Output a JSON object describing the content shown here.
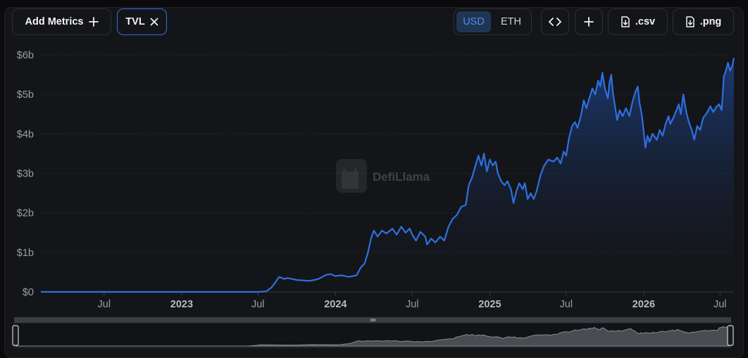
{
  "toolbar": {
    "add_metrics_label": "Add Metrics",
    "tvl_chip_label": "TVL",
    "currency_options": [
      "USD",
      "ETH"
    ],
    "currency_selected": "USD",
    "csv_label": ".csv",
    "png_label": ".png"
  },
  "watermark": "DefiLlama",
  "colors": {
    "line": "#2f6fe0",
    "fill_top": "#1c3c78",
    "background": "#141518",
    "grid": "#26282e"
  },
  "chart_data": {
    "type": "area",
    "series": [
      {
        "values": [
          [
            "2022-02-01",
            0
          ],
          [
            "2022-07-01",
            0
          ],
          [
            "2023-01-01",
            0
          ],
          [
            "2023-07-01",
            0
          ],
          [
            "2023-07-20",
            0.01
          ],
          [
            "2023-08-01",
            0.1
          ],
          [
            "2023-08-10",
            0.22
          ],
          [
            "2023-08-20",
            0.38
          ],
          [
            "2023-09-01",
            0.33
          ],
          [
            "2023-09-10",
            0.35
          ],
          [
            "2023-10-01",
            0.3
          ],
          [
            "2023-11-01",
            0.28
          ],
          [
            "2023-11-20",
            0.32
          ],
          [
            "2023-12-10",
            0.43
          ],
          [
            "2023-12-20",
            0.45
          ],
          [
            "2024-01-01",
            0.4
          ],
          [
            "2024-01-15",
            0.42
          ],
          [
            "2024-02-01",
            0.38
          ],
          [
            "2024-02-20",
            0.42
          ],
          [
            "2024-03-01",
            0.62
          ],
          [
            "2024-03-10",
            0.72
          ],
          [
            "2024-03-18",
            1.0
          ],
          [
            "2024-03-25",
            1.35
          ],
          [
            "2024-04-01",
            1.55
          ],
          [
            "2024-04-10",
            1.4
          ],
          [
            "2024-04-20",
            1.55
          ],
          [
            "2024-05-01",
            1.48
          ],
          [
            "2024-05-15",
            1.6
          ],
          [
            "2024-05-25",
            1.45
          ],
          [
            "2024-06-05",
            1.65
          ],
          [
            "2024-06-15",
            1.5
          ],
          [
            "2024-06-25",
            1.6
          ],
          [
            "2024-07-01",
            1.45
          ],
          [
            "2024-07-10",
            1.3
          ],
          [
            "2024-07-20",
            1.52
          ],
          [
            "2024-08-01",
            1.4
          ],
          [
            "2024-08-05",
            1.2
          ],
          [
            "2024-08-15",
            1.35
          ],
          [
            "2024-08-25",
            1.25
          ],
          [
            "2024-09-05",
            1.4
          ],
          [
            "2024-09-15",
            1.3
          ],
          [
            "2024-09-25",
            1.65
          ],
          [
            "2024-10-05",
            1.85
          ],
          [
            "2024-10-15",
            1.95
          ],
          [
            "2024-10-25",
            2.15
          ],
          [
            "2024-11-05",
            2.2
          ],
          [
            "2024-11-12",
            2.7
          ],
          [
            "2024-11-20",
            2.9
          ],
          [
            "2024-11-28",
            3.2
          ],
          [
            "2024-12-05",
            3.45
          ],
          [
            "2024-12-12",
            3.2
          ],
          [
            "2024-12-18",
            3.5
          ],
          [
            "2024-12-25",
            3.05
          ],
          [
            "2025-01-01",
            3.35
          ],
          [
            "2025-01-08",
            3.2
          ],
          [
            "2025-01-15",
            3.3
          ],
          [
            "2025-01-20",
            3.0
          ],
          [
            "2025-01-28",
            2.8
          ],
          [
            "2025-02-05",
            2.7
          ],
          [
            "2025-02-12",
            2.8
          ],
          [
            "2025-02-20",
            2.6
          ],
          [
            "2025-02-26",
            2.25
          ],
          [
            "2025-03-05",
            2.55
          ],
          [
            "2025-03-12",
            2.75
          ],
          [
            "2025-03-20",
            2.6
          ],
          [
            "2025-03-25",
            2.75
          ],
          [
            "2025-04-01",
            2.35
          ],
          [
            "2025-04-08",
            2.5
          ],
          [
            "2025-04-15",
            2.35
          ],
          [
            "2025-04-22",
            2.55
          ],
          [
            "2025-05-01",
            2.95
          ],
          [
            "2025-05-10",
            3.2
          ],
          [
            "2025-05-20",
            3.35
          ],
          [
            "2025-06-01",
            3.3
          ],
          [
            "2025-06-10",
            3.4
          ],
          [
            "2025-06-18",
            3.25
          ],
          [
            "2025-06-25",
            3.55
          ],
          [
            "2025-07-01",
            3.45
          ],
          [
            "2025-07-08",
            3.9
          ],
          [
            "2025-07-15",
            4.2
          ],
          [
            "2025-07-22",
            4.3
          ],
          [
            "2025-07-28",
            4.15
          ],
          [
            "2025-08-05",
            4.45
          ],
          [
            "2025-08-12",
            4.85
          ],
          [
            "2025-08-18",
            4.65
          ],
          [
            "2025-08-25",
            4.9
          ],
          [
            "2025-09-01",
            5.15
          ],
          [
            "2025-09-08",
            5.0
          ],
          [
            "2025-09-15",
            5.35
          ],
          [
            "2025-09-20",
            5.2
          ],
          [
            "2025-09-25",
            5.55
          ],
          [
            "2025-10-01",
            5.15
          ],
          [
            "2025-10-08",
            4.9
          ],
          [
            "2025-10-12",
            5.3
          ],
          [
            "2025-10-16",
            5.5
          ],
          [
            "2025-10-20",
            5.05
          ],
          [
            "2025-10-25",
            4.7
          ],
          [
            "2025-10-30",
            4.35
          ],
          [
            "2025-11-05",
            4.6
          ],
          [
            "2025-11-12",
            4.45
          ],
          [
            "2025-11-20",
            4.65
          ],
          [
            "2025-11-28",
            4.45
          ],
          [
            "2025-12-05",
            4.8
          ],
          [
            "2025-12-12",
            5.05
          ],
          [
            "2025-12-18",
            5.2
          ],
          [
            "2025-12-22",
            4.8
          ],
          [
            "2025-12-28",
            4.45
          ],
          [
            "2026-01-05",
            3.65
          ],
          [
            "2026-01-10",
            3.95
          ],
          [
            "2026-01-15",
            3.8
          ],
          [
            "2026-01-22",
            4.0
          ],
          [
            "2026-02-01",
            3.85
          ],
          [
            "2026-02-08",
            4.1
          ],
          [
            "2026-02-15",
            3.95
          ],
          [
            "2026-02-22",
            4.25
          ],
          [
            "2026-03-01",
            4.45
          ],
          [
            "2026-03-05",
            4.25
          ],
          [
            "2026-03-12",
            4.4
          ],
          [
            "2026-03-20",
            4.6
          ],
          [
            "2026-03-25",
            4.75
          ],
          [
            "2026-03-30",
            4.5
          ],
          [
            "2026-04-05",
            5.0
          ],
          [
            "2026-04-12",
            4.55
          ],
          [
            "2026-04-18",
            4.3
          ],
          [
            "2026-04-25",
            4.1
          ],
          [
            "2026-05-01",
            3.85
          ],
          [
            "2026-05-08",
            4.2
          ],
          [
            "2026-05-15",
            4.1
          ],
          [
            "2026-05-22",
            4.4
          ],
          [
            "2026-06-01",
            4.55
          ],
          [
            "2026-06-08",
            4.7
          ],
          [
            "2026-06-15",
            4.55
          ],
          [
            "2026-06-22",
            4.68
          ],
          [
            "2026-06-29",
            4.75
          ],
          [
            "2026-07-05",
            4.6
          ],
          [
            "2026-07-10",
            5.45
          ],
          [
            "2026-07-15",
            5.6
          ],
          [
            "2026-07-20",
            5.8
          ],
          [
            "2026-07-25",
            5.6
          ],
          [
            "2026-07-30",
            5.72
          ],
          [
            "2026-08-03",
            5.92
          ]
        ]
      }
    ],
    "x_range": [
      "2022-02-01",
      "2026-08-03"
    ],
    "ylim": [
      0,
      6
    ],
    "yticks": [
      "$0",
      "$1b",
      "$2b",
      "$3b",
      "$4b",
      "$5b",
      "$6b"
    ],
    "xticks": [
      {
        "label": "Jul",
        "date": "2022-07-01",
        "year": false
      },
      {
        "label": "2023",
        "date": "2023-01-01",
        "year": true
      },
      {
        "label": "Jul",
        "date": "2023-07-01",
        "year": false
      },
      {
        "label": "2024",
        "date": "2024-01-01",
        "year": true
      },
      {
        "label": "Jul",
        "date": "2024-07-01",
        "year": false
      },
      {
        "label": "2025",
        "date": "2025-01-01",
        "year": true
      },
      {
        "label": "Jul",
        "date": "2025-07-01",
        "year": false
      },
      {
        "label": "2026",
        "date": "2026-01-01",
        "year": true
      },
      {
        "label": "Jul",
        "date": "2026-07-01",
        "year": false
      }
    ],
    "grid": true,
    "brush_range": [
      0,
      1
    ]
  }
}
